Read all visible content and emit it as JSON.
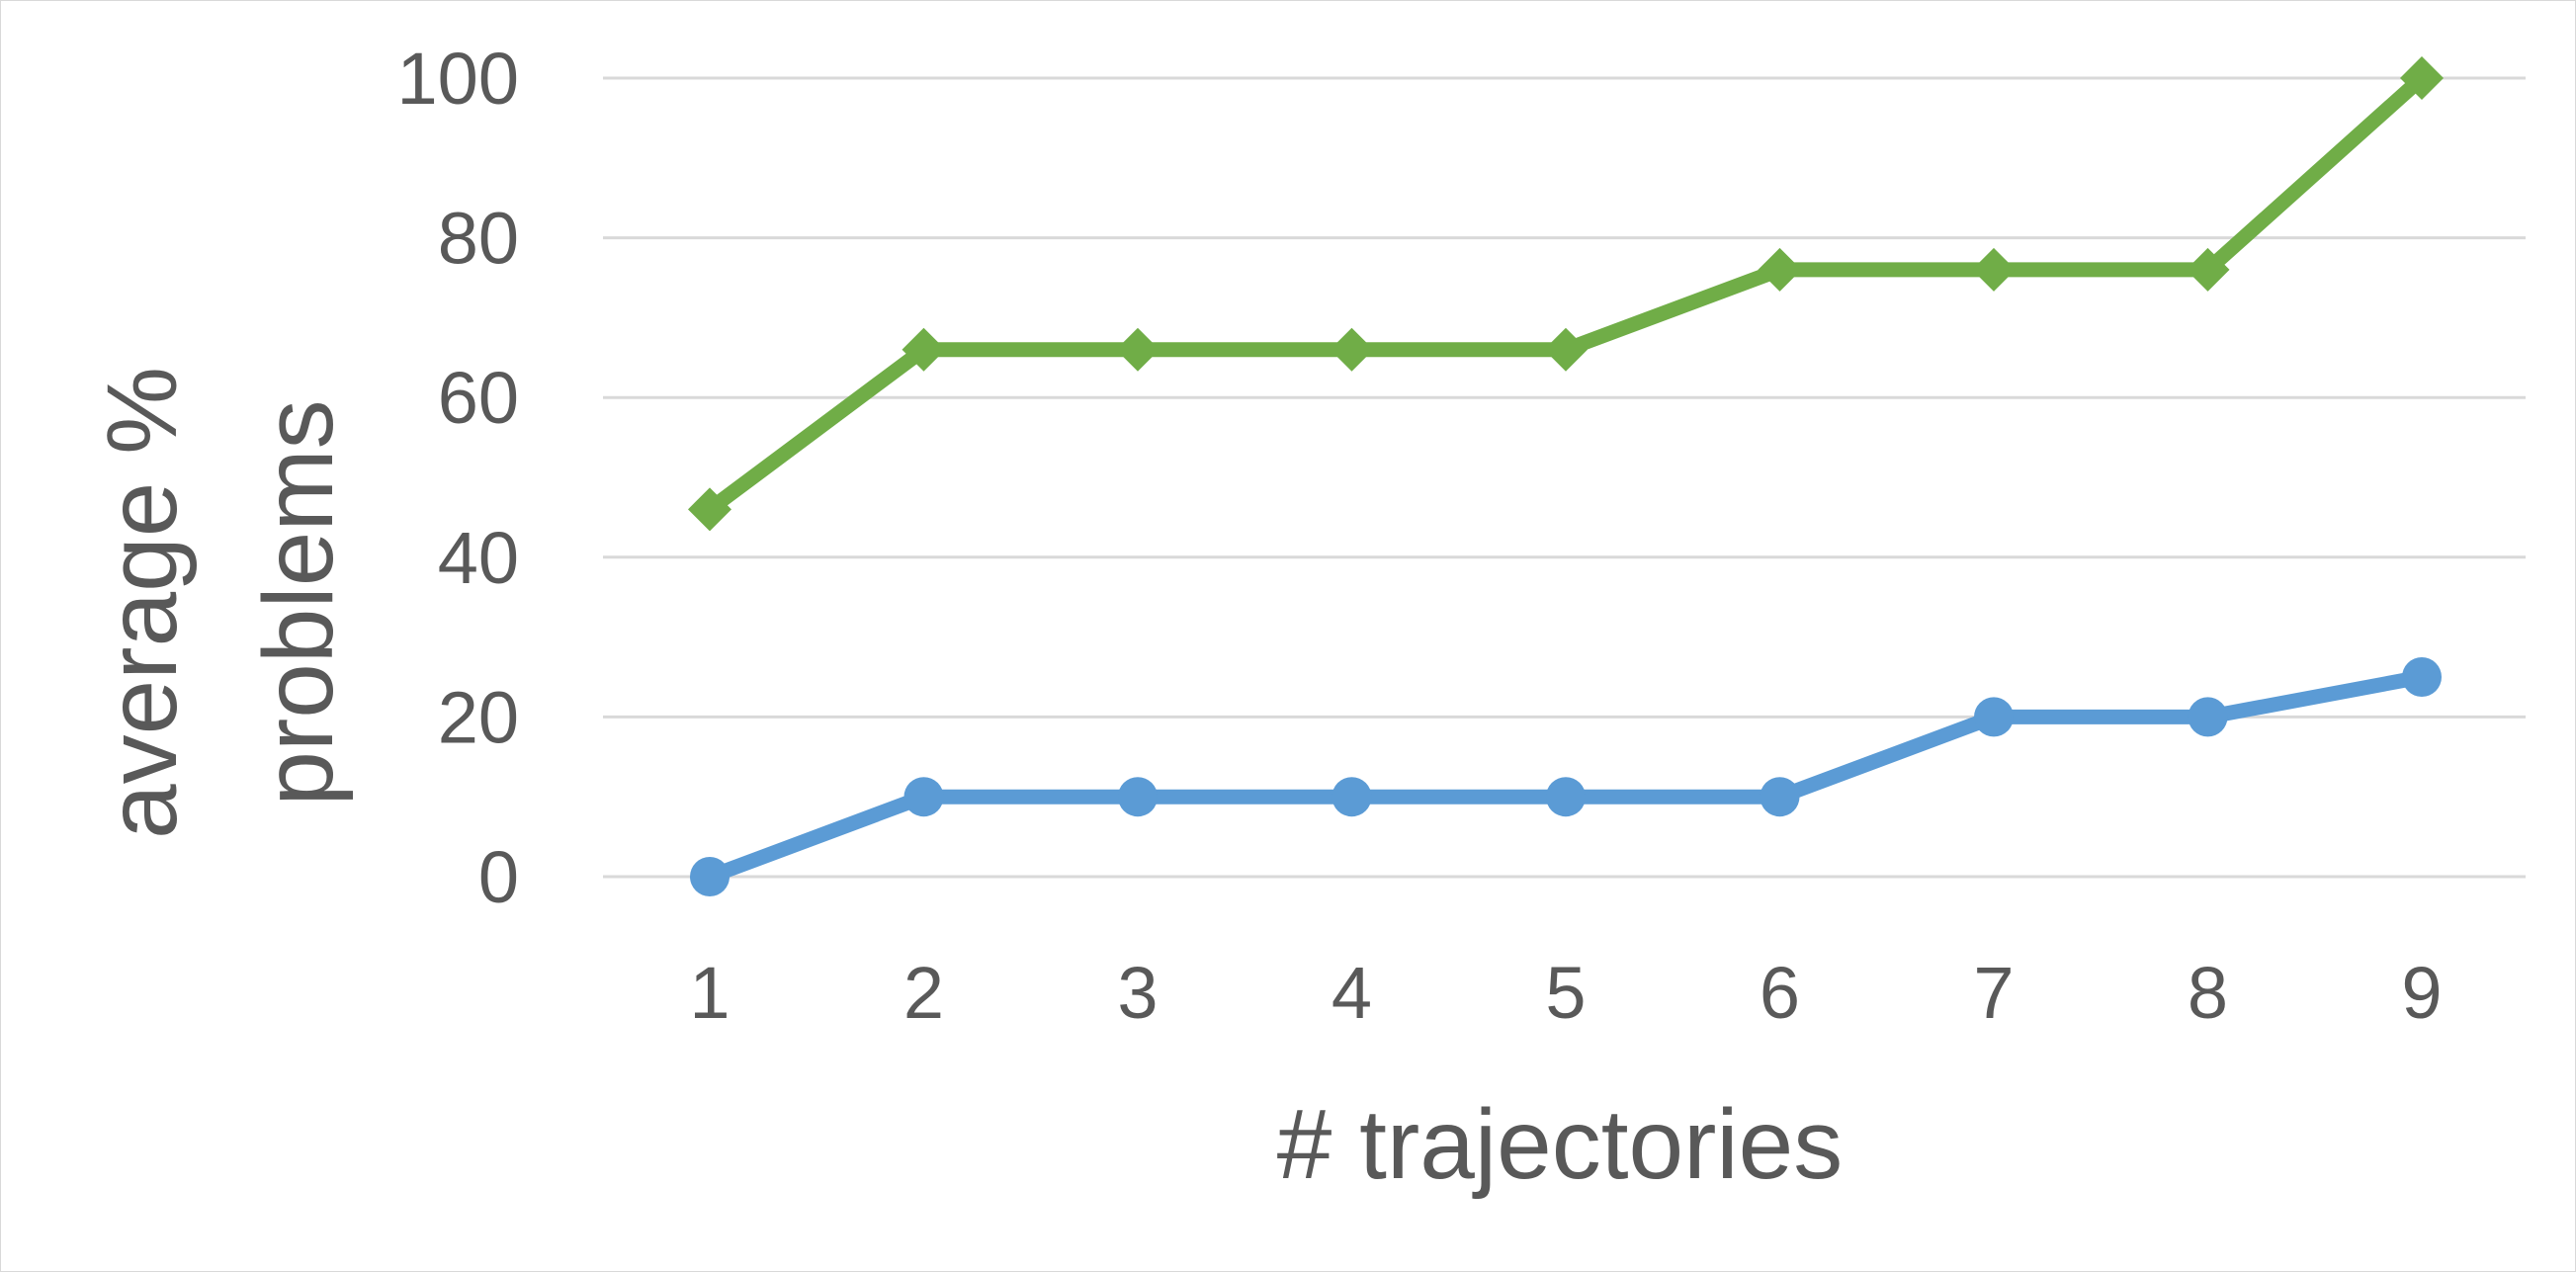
{
  "chart_data": {
    "type": "line",
    "title": "",
    "xlabel": "# trajectories",
    "ylabel_lines": [
      "average %",
      "problems"
    ],
    "categories": [
      "1",
      "2",
      "3",
      "4",
      "5",
      "6",
      "7",
      "8",
      "9"
    ],
    "ylim": [
      0,
      100
    ],
    "yticks": [
      "0",
      "20",
      "40",
      "60",
      "80",
      "100"
    ],
    "grid": true,
    "legend": "none",
    "series": [
      {
        "marker": "diamond",
        "color": "#70ad47",
        "values": [
          46,
          66,
          66,
          66,
          66,
          76,
          76,
          76,
          100
        ]
      },
      {
        "marker": "circle",
        "color": "#5b9bd5",
        "values": [
          0,
          10,
          10,
          10,
          10,
          10,
          20,
          20,
          25
        ]
      }
    ]
  }
}
